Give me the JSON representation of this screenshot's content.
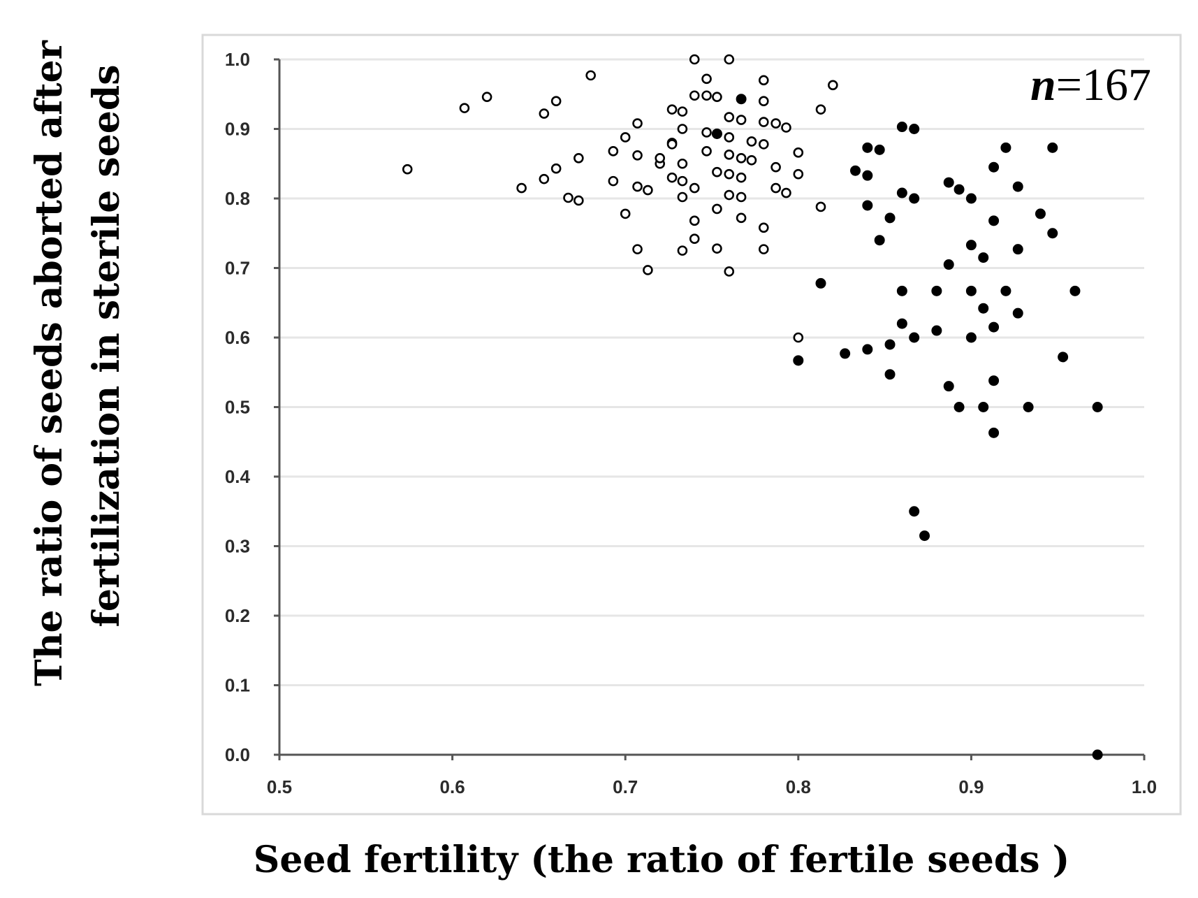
{
  "chart_data": {
    "type": "scatter",
    "title": "",
    "xlabel": "Seed fertility (the ratio of fertile seeds )",
    "ylabel_lines": [
      "The ratio of seeds aborted after",
      "fertilization in sterile seeds"
    ],
    "xlim": [
      0.5,
      1.0
    ],
    "ylim": [
      0.0,
      1.0
    ],
    "xticks": [
      "0.5",
      "0.6",
      "0.7",
      "0.8",
      "0.9",
      "1.0"
    ],
    "yticks": [
      "0.0",
      "0.1",
      "0.2",
      "0.3",
      "0.4",
      "0.5",
      "0.6",
      "0.7",
      "0.8",
      "0.9",
      "1.0"
    ],
    "grid": "horizontal",
    "annotation": {
      "italic": "n",
      "rest": "=167",
      "position": "top-right"
    },
    "colors": {
      "axis": "#555555",
      "grid": "#e6e6e6",
      "frame": "#d9d9d9",
      "marker": "#000000"
    },
    "series": [
      {
        "name": "open",
        "marker": "open-circle",
        "points": [
          [
            0.574,
            0.842
          ],
          [
            0.607,
            0.93
          ],
          [
            0.62,
            0.946
          ],
          [
            0.64,
            0.815
          ],
          [
            0.653,
            0.922
          ],
          [
            0.653,
            0.828
          ],
          [
            0.66,
            0.94
          ],
          [
            0.66,
            0.843
          ],
          [
            0.667,
            0.801
          ],
          [
            0.673,
            0.797
          ],
          [
            0.673,
            0.858
          ],
          [
            0.68,
            0.977
          ],
          [
            0.693,
            0.868
          ],
          [
            0.693,
            0.825
          ],
          [
            0.7,
            0.888
          ],
          [
            0.7,
            0.778
          ],
          [
            0.707,
            0.908
          ],
          [
            0.707,
            0.862
          ],
          [
            0.707,
            0.817
          ],
          [
            0.707,
            0.727
          ],
          [
            0.713,
            0.812
          ],
          [
            0.713,
            0.697
          ],
          [
            0.72,
            0.85
          ],
          [
            0.72,
            0.858
          ],
          [
            0.727,
            0.88
          ],
          [
            0.727,
            0.928
          ],
          [
            0.727,
            0.878
          ],
          [
            0.727,
            0.83
          ],
          [
            0.733,
            0.925
          ],
          [
            0.733,
            0.9
          ],
          [
            0.733,
            0.85
          ],
          [
            0.733,
            0.825
          ],
          [
            0.733,
            0.802
          ],
          [
            0.733,
            0.725
          ],
          [
            0.74,
            1.0
          ],
          [
            0.74,
            0.948
          ],
          [
            0.74,
            0.815
          ],
          [
            0.74,
            0.768
          ],
          [
            0.74,
            0.742
          ],
          [
            0.747,
            0.972
          ],
          [
            0.747,
            0.948
          ],
          [
            0.747,
            0.895
          ],
          [
            0.747,
            0.868
          ],
          [
            0.753,
            0.946
          ],
          [
            0.753,
            0.893
          ],
          [
            0.753,
            0.838
          ],
          [
            0.753,
            0.785
          ],
          [
            0.753,
            0.728
          ],
          [
            0.76,
            1.0
          ],
          [
            0.76,
            0.917
          ],
          [
            0.76,
            0.888
          ],
          [
            0.76,
            0.863
          ],
          [
            0.76,
            0.835
          ],
          [
            0.76,
            0.805
          ],
          [
            0.76,
            0.695
          ],
          [
            0.767,
            0.913
          ],
          [
            0.767,
            0.858
          ],
          [
            0.767,
            0.83
          ],
          [
            0.767,
            0.802
          ],
          [
            0.767,
            0.772
          ],
          [
            0.773,
            0.882
          ],
          [
            0.773,
            0.855
          ],
          [
            0.78,
            0.97
          ],
          [
            0.78,
            0.94
          ],
          [
            0.78,
            0.91
          ],
          [
            0.78,
            0.878
          ],
          [
            0.78,
            0.758
          ],
          [
            0.78,
            0.727
          ],
          [
            0.787,
            0.908
          ],
          [
            0.787,
            0.845
          ],
          [
            0.787,
            0.815
          ],
          [
            0.793,
            0.902
          ],
          [
            0.793,
            0.808
          ],
          [
            0.8,
            0.866
          ],
          [
            0.8,
            0.835
          ],
          [
            0.8,
            0.6
          ],
          [
            0.813,
            0.928
          ],
          [
            0.813,
            0.788
          ],
          [
            0.82,
            0.963
          ]
        ]
      },
      {
        "name": "filled",
        "marker": "filled-circle",
        "points": [
          [
            0.753,
            0.893
          ],
          [
            0.767,
            0.943
          ],
          [
            0.8,
            0.567
          ],
          [
            0.813,
            0.678
          ],
          [
            0.827,
            0.577
          ],
          [
            0.833,
            0.84
          ],
          [
            0.84,
            0.873
          ],
          [
            0.84,
            0.833
          ],
          [
            0.84,
            0.79
          ],
          [
            0.84,
            0.583
          ],
          [
            0.847,
            0.87
          ],
          [
            0.847,
            0.74
          ],
          [
            0.853,
            0.772
          ],
          [
            0.853,
            0.59
          ],
          [
            0.853,
            0.547
          ],
          [
            0.86,
            0.903
          ],
          [
            0.86,
            0.808
          ],
          [
            0.86,
            0.667
          ],
          [
            0.86,
            0.62
          ],
          [
            0.867,
            0.9
          ],
          [
            0.867,
            0.8
          ],
          [
            0.867,
            0.6
          ],
          [
            0.867,
            0.35
          ],
          [
            0.873,
            0.315
          ],
          [
            0.88,
            0.667
          ],
          [
            0.88,
            0.61
          ],
          [
            0.887,
            0.823
          ],
          [
            0.887,
            0.705
          ],
          [
            0.887,
            0.53
          ],
          [
            0.893,
            0.813
          ],
          [
            0.893,
            0.5
          ],
          [
            0.9,
            0.8
          ],
          [
            0.9,
            0.733
          ],
          [
            0.9,
            0.667
          ],
          [
            0.9,
            0.6
          ],
          [
            0.907,
            0.715
          ],
          [
            0.907,
            0.642
          ],
          [
            0.907,
            0.5
          ],
          [
            0.913,
            0.845
          ],
          [
            0.913,
            0.768
          ],
          [
            0.913,
            0.615
          ],
          [
            0.913,
            0.538
          ],
          [
            0.913,
            0.463
          ],
          [
            0.92,
            0.873
          ],
          [
            0.92,
            0.667
          ],
          [
            0.927,
            0.817
          ],
          [
            0.927,
            0.727
          ],
          [
            0.927,
            0.635
          ],
          [
            0.933,
            0.5
          ],
          [
            0.94,
            0.778
          ],
          [
            0.947,
            0.873
          ],
          [
            0.947,
            0.75
          ],
          [
            0.953,
            0.572
          ],
          [
            0.96,
            0.667
          ],
          [
            0.973,
            0.5
          ],
          [
            0.973,
            0.0
          ]
        ]
      }
    ]
  }
}
